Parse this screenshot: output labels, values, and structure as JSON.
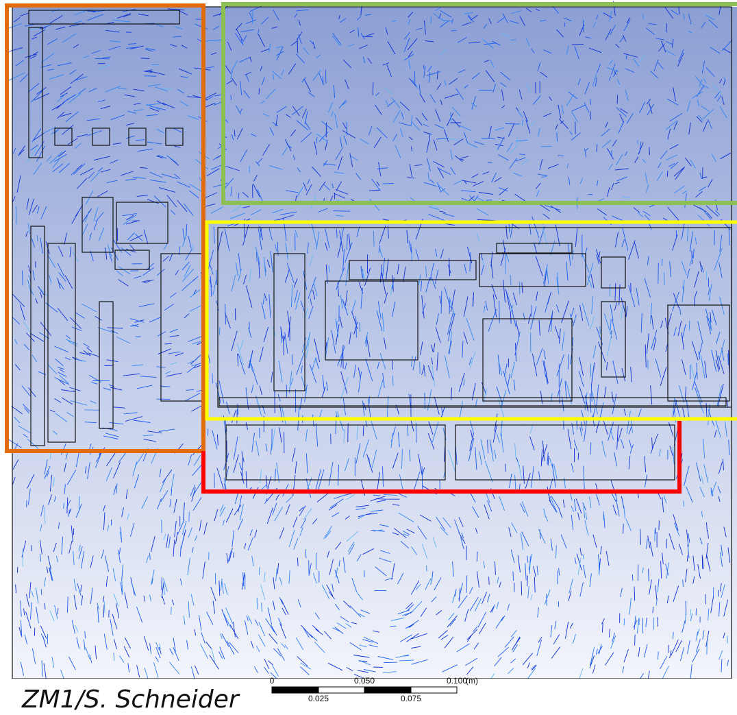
{
  "figure": {
    "credit": "ZM1/S. Schneider",
    "scale_bar": {
      "top_labels": [
        "0",
        "0.050",
        "0.100"
      ],
      "unit": "(m)",
      "bottom_labels": [
        "0.025",
        "0.075"
      ]
    }
  }
}
